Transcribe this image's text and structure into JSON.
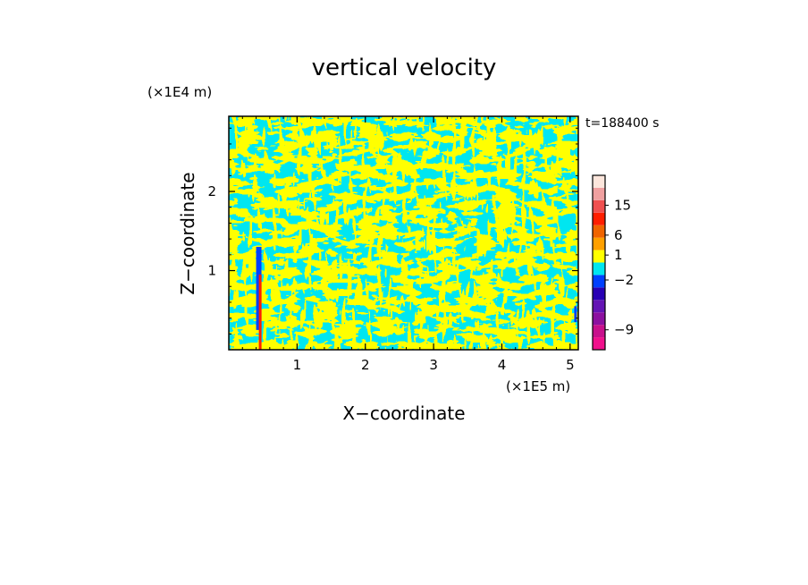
{
  "chart_data": {
    "type": "heatmap",
    "title": "vertical velocity",
    "xlabel": "X−coordinate",
    "ylabel": "Z−coordinate",
    "x_unit": "(×1E5 m)",
    "y_unit": "(×1E4 m)",
    "time_label": "t=188400 s",
    "xlim": [
      0,
      5.12
    ],
    "ylim": [
      0,
      2.95
    ],
    "x_ticks": [
      "1",
      "2",
      "3",
      "4",
      "5"
    ],
    "y_ticks": [
      "1",
      "2"
    ],
    "x_tick_values": [
      1,
      2,
      3,
      4,
      5
    ],
    "y_tick_values": [
      1,
      2
    ],
    "colorbar": {
      "levels": [
        {
          "color": "#f0108c"
        },
        {
          "color": "#c8108c"
        },
        {
          "color": "#8c10a0"
        },
        {
          "color": "#6414b4"
        },
        {
          "color": "#2800b4"
        },
        {
          "color": "#0040ff"
        },
        {
          "color": "#00e6f0"
        },
        {
          "color": "#ffff00"
        },
        {
          "color": "#ffa000"
        },
        {
          "color": "#f06400"
        },
        {
          "color": "#ff1e00"
        },
        {
          "color": "#f05050"
        },
        {
          "color": "#f0a0a0"
        },
        {
          "color": "#fce6dc"
        }
      ],
      "labels": [
        {
          "text": "15",
          "level": 11.6
        },
        {
          "text": "6",
          "level": 9.2
        },
        {
          "text": "1",
          "level": 7.6
        },
        {
          "text": "−2",
          "level": 5.6
        },
        {
          "text": "−9",
          "level": 1.6
        }
      ]
    },
    "field_colors": {
      "background": "#00e6f0",
      "positive": "#ffff00",
      "negative": "#0040ff",
      "strong_positive": "#ff1e00"
    },
    "grid": false
  }
}
